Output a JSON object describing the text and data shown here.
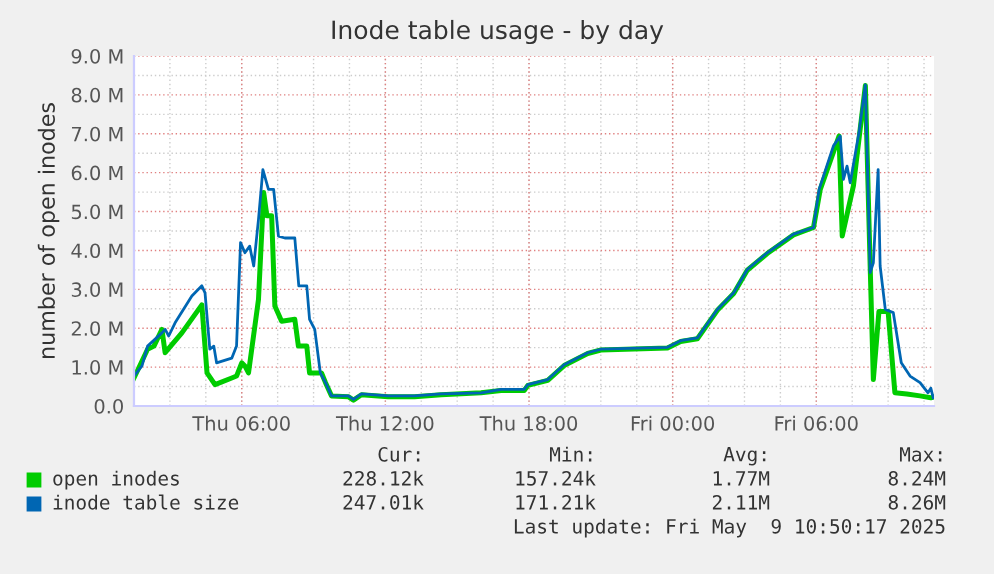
{
  "chart_data": {
    "type": "line",
    "title": "Inode table usage - by day",
    "ylabel": "number of open inodes",
    "xlim": [
      "2025-05-08T01:30",
      "2025-05-09T10:55"
    ],
    "xticks": [
      {
        "value": "2025-05-08T06:00",
        "label": "Thu 06:00"
      },
      {
        "value": "2025-05-08T12:00",
        "label": "Thu 12:00"
      },
      {
        "value": "2025-05-08T18:00",
        "label": "Thu 18:00"
      },
      {
        "value": "2025-05-09T00:00",
        "label": "Fri 00:00"
      },
      {
        "value": "2025-05-09T06:00",
        "label": "Fri 06:00"
      }
    ],
    "ylim": [
      0,
      9
    ],
    "yticks": [
      {
        "value": 0,
        "label": "0.0"
      },
      {
        "value": 1,
        "label": "1.0 M"
      },
      {
        "value": 2,
        "label": "2.0 M"
      },
      {
        "value": 3,
        "label": "3.0 M"
      },
      {
        "value": 4,
        "label": "4.0 M"
      },
      {
        "value": 5,
        "label": "5.0 M"
      },
      {
        "value": 6,
        "label": "6.0 M"
      },
      {
        "value": 7,
        "label": "7.0 M"
      },
      {
        "value": 8,
        "label": "8.0 M"
      },
      {
        "value": 9,
        "label": "9.0 M"
      }
    ],
    "grid": true,
    "legend": "bottom",
    "marker": "none",
    "line_style": "solid",
    "series": [
      {
        "name": "open inodes",
        "color": "#00cc00",
        "x": [
          "2025-05-08T01:30",
          "2025-05-08T02:04",
          "2025-05-08T02:20",
          "2025-05-08T02:40",
          "2025-05-08T02:48",
          "2025-05-08T03:30",
          "2025-05-08T04:20",
          "2025-05-08T04:33",
          "2025-05-08T04:53",
          "2025-05-08T05:35",
          "2025-05-08T05:47",
          "2025-05-08T06:00",
          "2025-05-08T06:08",
          "2025-05-08T06:17",
          "2025-05-08T06:42",
          "2025-05-08T06:55",
          "2025-05-08T07:03",
          "2025-05-08T07:15",
          "2025-05-08T07:23",
          "2025-05-08T07:40",
          "2025-05-08T08:13",
          "2025-05-08T08:22",
          "2025-05-08T08:43",
          "2025-05-08T08:50",
          "2025-05-08T09:20",
          "2025-05-08T09:30",
          "2025-05-08T09:45",
          "2025-05-08T10:27",
          "2025-05-08T10:40",
          "2025-05-08T11:00",
          "2025-05-08T12:07",
          "2025-05-08T13:13",
          "2025-05-08T14:20",
          "2025-05-08T16:00",
          "2025-05-08T16:50",
          "2025-05-08T17:48",
          "2025-05-08T17:57",
          "2025-05-08T18:47",
          "2025-05-08T19:28",
          "2025-05-08T20:27",
          "2025-05-08T21:00",
          "2025-05-08T23:47",
          "2025-05-09T00:20",
          "2025-05-09T01:02",
          "2025-05-09T01:52",
          "2025-05-09T02:33",
          "2025-05-09T03:07",
          "2025-05-09T03:57",
          "2025-05-09T05:03",
          "2025-05-09T05:53",
          "2025-05-09T06:10",
          "2025-05-09T06:57",
          "2025-05-09T07:05",
          "2025-05-09T07:33",
          "2025-05-09T08:03",
          "2025-05-09T08:15",
          "2025-05-09T08:23",
          "2025-05-09T08:37",
          "2025-05-09T09:00",
          "2025-05-09T09:17",
          "2025-05-09T09:47",
          "2025-05-09T10:20",
          "2025-05-09T10:47",
          "2025-05-09T10:53"
        ],
        "values": [
          0.72,
          1.46,
          1.54,
          1.97,
          1.37,
          1.88,
          2.6,
          0.85,
          0.55,
          0.72,
          0.77,
          1.11,
          1.03,
          0.85,
          2.74,
          5.49,
          4.89,
          4.89,
          2.57,
          2.18,
          2.23,
          1.54,
          1.54,
          0.85,
          0.85,
          0.6,
          0.26,
          0.24,
          0.15,
          0.29,
          0.24,
          0.24,
          0.29,
          0.34,
          0.4,
          0.4,
          0.53,
          0.66,
          1.04,
          1.35,
          1.44,
          1.49,
          1.66,
          1.73,
          2.46,
          2.89,
          3.49,
          3.92,
          4.4,
          4.59,
          5.57,
          6.94,
          4.37,
          5.66,
          8.24,
          3.6,
          0.68,
          2.43,
          2.43,
          0.34,
          0.31,
          0.26,
          0.21,
          0.23
        ]
      },
      {
        "name": "inode table size",
        "color": "#0066b3",
        "x": [
          "2025-05-08T01:30",
          "2025-05-08T01:50",
          "2025-05-08T02:04",
          "2025-05-08T02:40",
          "2025-05-08T02:48",
          "2025-05-08T02:57",
          "2025-05-08T03:13",
          "2025-05-08T03:55",
          "2025-05-08T04:20",
          "2025-05-08T04:28",
          "2025-05-08T04:40",
          "2025-05-08T04:50",
          "2025-05-08T04:57",
          "2025-05-08T05:35",
          "2025-05-08T05:47",
          "2025-05-08T05:57",
          "2025-05-08T06:08",
          "2025-05-08T06:20",
          "2025-05-08T06:30",
          "2025-05-08T06:42",
          "2025-05-08T06:53",
          "2025-05-08T07:07",
          "2025-05-08T07:20",
          "2025-05-08T07:32",
          "2025-05-08T07:48",
          "2025-05-08T08:13",
          "2025-05-08T08:23",
          "2025-05-08T08:43",
          "2025-05-08T08:50",
          "2025-05-08T09:03",
          "2025-05-08T09:17",
          "2025-05-08T09:30",
          "2025-05-08T09:45",
          "2025-05-08T10:27",
          "2025-05-08T10:40",
          "2025-05-08T11:00",
          "2025-05-08T12:07",
          "2025-05-08T13:13",
          "2025-05-08T14:20",
          "2025-05-08T16:00",
          "2025-05-08T16:50",
          "2025-05-08T17:48",
          "2025-05-08T17:57",
          "2025-05-08T18:47",
          "2025-05-08T19:28",
          "2025-05-08T20:27",
          "2025-05-08T21:00",
          "2025-05-08T23:47",
          "2025-05-09T00:20",
          "2025-05-09T01:02",
          "2025-05-09T01:52",
          "2025-05-09T02:33",
          "2025-05-09T03:07",
          "2025-05-09T03:57",
          "2025-05-09T05:03",
          "2025-05-09T05:53",
          "2025-05-09T06:07",
          "2025-05-09T06:43",
          "2025-05-09T07:00",
          "2025-05-09T07:08",
          "2025-05-09T07:17",
          "2025-05-09T07:25",
          "2025-05-09T07:47",
          "2025-05-09T08:03",
          "2025-05-09T08:15",
          "2025-05-09T08:23",
          "2025-05-09T08:35",
          "2025-05-09T08:40",
          "2025-05-09T08:53",
          "2025-05-09T09:13",
          "2025-05-09T09:33",
          "2025-05-09T09:55",
          "2025-05-09T10:20",
          "2025-05-09T10:40",
          "2025-05-09T10:47",
          "2025-05-09T10:53"
        ],
        "values": [
          0.77,
          1.03,
          1.54,
          1.88,
          1.97,
          1.8,
          2.14,
          2.83,
          3.09,
          2.91,
          1.46,
          1.54,
          1.11,
          1.23,
          1.54,
          4.2,
          3.94,
          4.11,
          3.6,
          4.8,
          6.08,
          5.57,
          5.57,
          4.37,
          4.32,
          4.32,
          3.09,
          3.09,
          2.23,
          1.97,
          0.85,
          0.6,
          0.26,
          0.26,
          0.17,
          0.31,
          0.26,
          0.26,
          0.31,
          0.34,
          0.43,
          0.43,
          0.55,
          0.68,
          1.06,
          1.37,
          1.46,
          1.51,
          1.68,
          1.75,
          2.48,
          2.91,
          3.51,
          3.94,
          4.42,
          4.59,
          5.57,
          6.69,
          6.94,
          5.83,
          6.17,
          5.74,
          7.03,
          8.26,
          3.43,
          3.68,
          6.08,
          3.6,
          2.48,
          2.4,
          1.11,
          0.77,
          0.6,
          0.34,
          0.46,
          0.21
        ]
      }
    ],
    "annotations": [
      "Cur:",
      "Min:",
      "Avg:",
      "Max:",
      "228.12k",
      "157.24k",
      "1.77M",
      "8.24M",
      "247.01k",
      "171.21k",
      "2.11M",
      "8.26M",
      "Last update: Fri May  9 10:50:17 2025"
    ]
  }
}
